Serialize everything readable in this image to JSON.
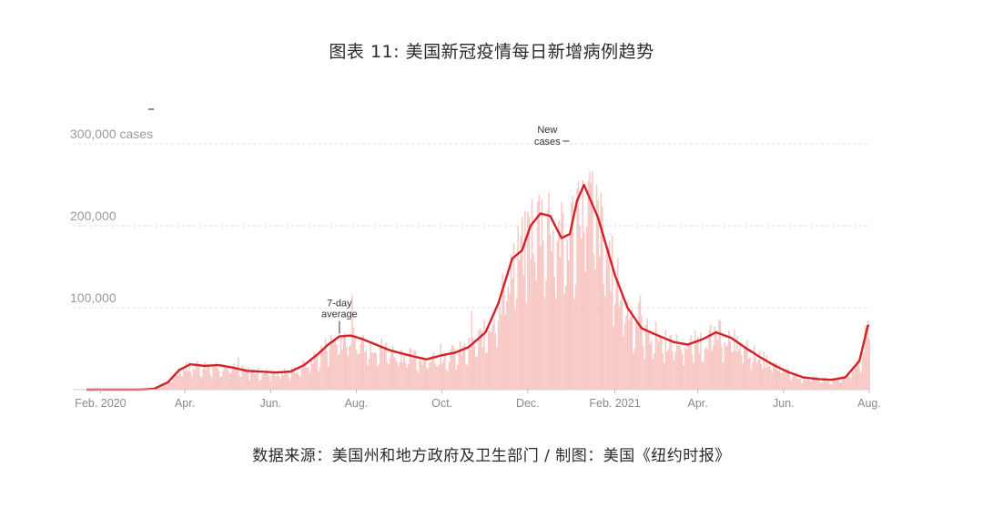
{
  "title": "图表 11: 美国新冠疫情每日新增病例趋势",
  "source": "数据来源：美国州和地方政府及卫生部门 / 制图：美国《纽约时报》",
  "colors": {
    "line": "#d42027",
    "bars": "#f7c7c4",
    "grid": "#dcdcdc",
    "axis_text": "#9a9a9a"
  },
  "chart_data": {
    "type": "area",
    "title": "图表 11: 美国新冠疫情每日新增病例趋势",
    "y_tick_labels": [
      "300,000 cases",
      "200,000",
      "100,000"
    ],
    "y_tick_values": [
      300000,
      200000,
      100000
    ],
    "ylim": [
      0,
      300000
    ],
    "x_tick_labels": [
      "Feb. 2020",
      "Apr.",
      "Jun.",
      "Aug.",
      "Oct.",
      "Dec.",
      "Feb. 2021",
      "Apr.",
      "Jun.",
      "Aug."
    ],
    "x_tick_dates": [
      "2020-02-01",
      "2020-04-01",
      "2020-06-01",
      "2020-08-01",
      "2020-10-01",
      "2020-12-01",
      "2021-02-01",
      "2021-04-01",
      "2021-06-01",
      "2021-08-01"
    ],
    "xlim": [
      "2020-01-22",
      "2021-08-01"
    ],
    "grid": true,
    "annotations": [
      {
        "text": [
          "7-day",
          "average"
        ],
        "date": "2020-07-20",
        "value": 66000
      },
      {
        "text": [
          "New",
          "cases"
        ],
        "date": "2020-12-24",
        "value": 300000
      }
    ],
    "series": [
      {
        "name": "7-day average",
        "kind": "line",
        "x": [
          "2020-01-22",
          "2020-03-01",
          "2020-03-10",
          "2020-03-20",
          "2020-03-28",
          "2020-04-05",
          "2020-04-15",
          "2020-04-25",
          "2020-05-05",
          "2020-05-15",
          "2020-05-25",
          "2020-06-05",
          "2020-06-15",
          "2020-06-25",
          "2020-07-05",
          "2020-07-12",
          "2020-07-20",
          "2020-07-28",
          "2020-08-05",
          "2020-08-15",
          "2020-08-25",
          "2020-09-05",
          "2020-09-12",
          "2020-09-20",
          "2020-10-01",
          "2020-10-10",
          "2020-10-20",
          "2020-11-01",
          "2020-11-10",
          "2020-11-20",
          "2020-11-27",
          "2020-12-03",
          "2020-12-10",
          "2020-12-17",
          "2020-12-25",
          "2020-12-31",
          "2021-01-05",
          "2021-01-10",
          "2021-01-20",
          "2021-02-01",
          "2021-02-10",
          "2021-02-20",
          "2021-03-01",
          "2021-03-15",
          "2021-03-25",
          "2021-04-05",
          "2021-04-14",
          "2021-04-25",
          "2021-05-05",
          "2021-05-15",
          "2021-05-25",
          "2021-06-05",
          "2021-06-15",
          "2021-06-25",
          "2021-07-05",
          "2021-07-15",
          "2021-07-25",
          "2021-07-31"
        ],
        "values": [
          0,
          100,
          1000,
          9000,
          24000,
          31000,
          29000,
          30000,
          27000,
          23000,
          22000,
          21000,
          22000,
          30000,
          44000,
          55000,
          65000,
          66000,
          62000,
          55000,
          48000,
          43000,
          40000,
          37000,
          42000,
          45000,
          52000,
          70000,
          105000,
          160000,
          170000,
          200000,
          215000,
          212000,
          185000,
          190000,
          230000,
          250000,
          210000,
          140000,
          100000,
          75000,
          68000,
          58000,
          55000,
          62000,
          70000,
          63000,
          51000,
          40000,
          30000,
          21000,
          15000,
          13000,
          12000,
          15000,
          35000,
          78000
        ]
      }
    ],
    "daily_bars_note": "daily new cases shown as pale bars around the 7-day average"
  }
}
